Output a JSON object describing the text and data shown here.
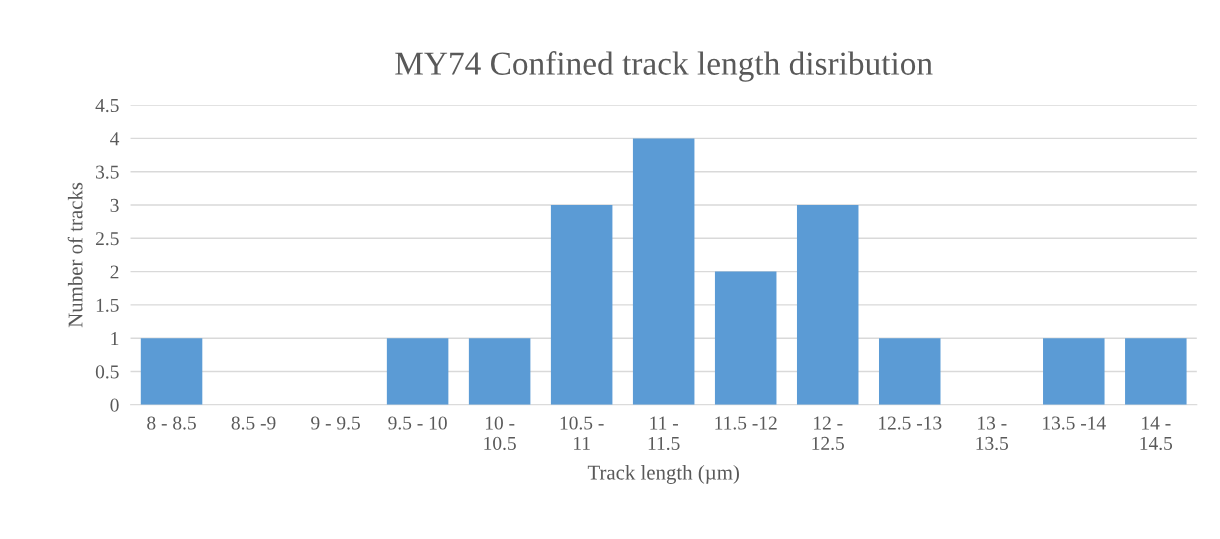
{
  "chart_data": {
    "type": "bar",
    "title": "MY74 Confined track length disribution",
    "xlabel": "Track length (µm)",
    "ylabel": "Number of tracks",
    "categories": [
      "8 - 8.5",
      "8.5 -9",
      "9 - 9.5",
      "9.5 - 10",
      "10 -\n10.5",
      "10.5 -\n11",
      "11 -\n11.5",
      "11.5 -12",
      "12 -\n12.5",
      "12.5 -13",
      "13 -\n13.5",
      "13.5 -14",
      "14 -\n14.5"
    ],
    "values": [
      1,
      0,
      0,
      1,
      1,
      3,
      4,
      2,
      3,
      1,
      0,
      1,
      1
    ],
    "color": "#5b9bd5",
    "ylim": [
      0,
      4.5
    ],
    "yticks": [
      0,
      0.5,
      1,
      1.5,
      2,
      2.5,
      3,
      3.5,
      4,
      4.5
    ],
    "grid": "y",
    "legend": false
  }
}
